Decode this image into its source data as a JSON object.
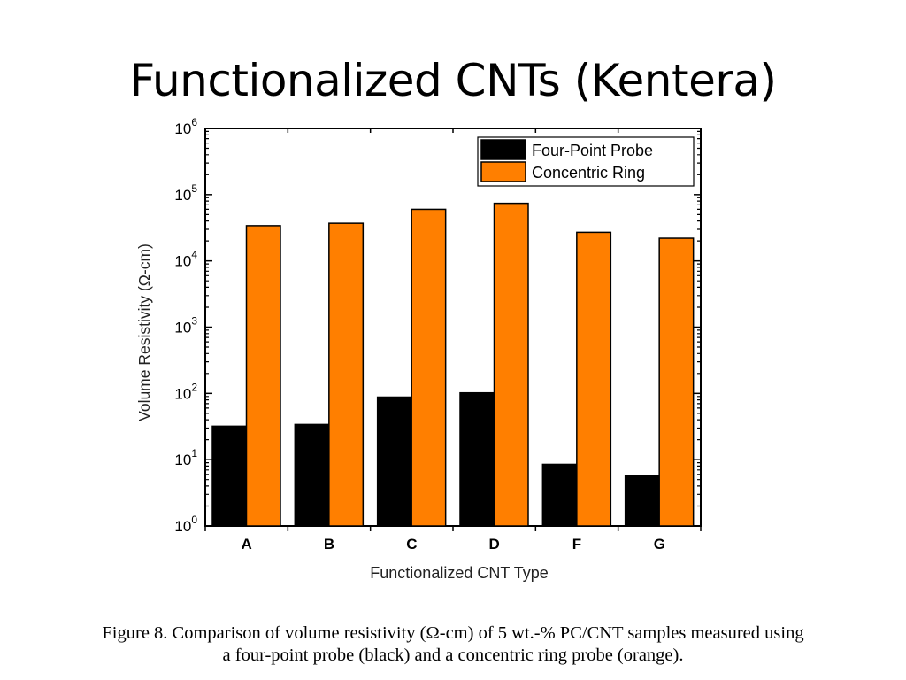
{
  "slide": {
    "title": "Functionalized CNTs (Kentera)"
  },
  "caption": {
    "line1": "Figure 8. Comparison of volume resistivity (Ω-cm) of 5 wt.-% PC/CNT samples measured using",
    "line2": "a four-point probe (black) and a concentric ring probe (orange)."
  },
  "chart_data": {
    "type": "bar",
    "title": "",
    "xlabel": "Functionalized CNT Type",
    "ylabel": "Volume Resistivity (Ω-cm)",
    "yscale": "log",
    "ylim": [
      1,
      1000000
    ],
    "yticks": [
      {
        "base": "10",
        "exp": "0",
        "value": 1
      },
      {
        "base": "10",
        "exp": "1",
        "value": 10
      },
      {
        "base": "10",
        "exp": "2",
        "value": 100
      },
      {
        "base": "10",
        "exp": "3",
        "value": 1000
      },
      {
        "base": "10",
        "exp": "4",
        "value": 10000
      },
      {
        "base": "10",
        "exp": "5",
        "value": 100000
      },
      {
        "base": "10",
        "exp": "6",
        "value": 1000000
      }
    ],
    "categories": [
      "A",
      "B",
      "C",
      "D",
      "F",
      "G"
    ],
    "series": [
      {
        "name": "Four-Point Probe",
        "color": "#000000",
        "values": [
          32,
          34,
          88,
          102,
          8.5,
          5.8
        ]
      },
      {
        "name": "Concentric Ring",
        "color": "#ff7f00",
        "values": [
          34000,
          37000,
          60000,
          74000,
          27000,
          22000
        ]
      }
    ],
    "legend_position": "top-right",
    "grid": false
  }
}
